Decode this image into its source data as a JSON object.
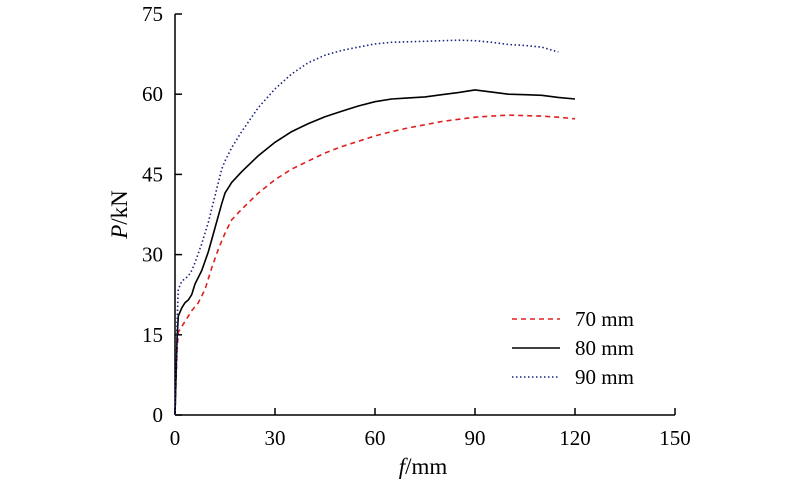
{
  "chart_data": {
    "type": "line",
    "xlabel": {
      "var": "f",
      "unit": "/mm"
    },
    "ylabel": {
      "var": "P",
      "unit": "/kN"
    },
    "xlim": [
      0,
      150
    ],
    "ylim": [
      0,
      75
    ],
    "xticks": [
      "0",
      "30",
      "60",
      "90",
      "120",
      "150"
    ],
    "yticks": [
      "0",
      "15",
      "30",
      "45",
      "60",
      "75"
    ],
    "grid": false,
    "legend_position": "bottom-right",
    "series": [
      {
        "name": "70 mm",
        "color": "#e02020",
        "style": "dashed",
        "points": [
          [
            0,
            0
          ],
          [
            0.3,
            6
          ],
          [
            0.6,
            12
          ],
          [
            1,
            15.5
          ],
          [
            3,
            17.5
          ],
          [
            5,
            19.5
          ],
          [
            7,
            21
          ],
          [
            9,
            23.5
          ],
          [
            11,
            27.5
          ],
          [
            13,
            31
          ],
          [
            15,
            34
          ],
          [
            17,
            36.5
          ],
          [
            20,
            38.5
          ],
          [
            25,
            41.5
          ],
          [
            30,
            44
          ],
          [
            35,
            46
          ],
          [
            40,
            47.5
          ],
          [
            45,
            49
          ],
          [
            50,
            50.2
          ],
          [
            55,
            51.2
          ],
          [
            60,
            52.2
          ],
          [
            65,
            53
          ],
          [
            70,
            53.7
          ],
          [
            75,
            54.3
          ],
          [
            80,
            54.9
          ],
          [
            85,
            55.3
          ],
          [
            90,
            55.7
          ],
          [
            95,
            55.9
          ],
          [
            100,
            56.1
          ],
          [
            105,
            56
          ],
          [
            110,
            55.9
          ],
          [
            115,
            55.7
          ],
          [
            120,
            55.4
          ]
        ]
      },
      {
        "name": "80 mm",
        "color": "#000000",
        "style": "solid",
        "points": [
          [
            0,
            0
          ],
          [
            0.3,
            7
          ],
          [
            0.6,
            14
          ],
          [
            1,
            18.5
          ],
          [
            2,
            20
          ],
          [
            3,
            21
          ],
          [
            4,
            21.5
          ],
          [
            5,
            22.5
          ],
          [
            6,
            24.5
          ],
          [
            8,
            27
          ],
          [
            10,
            30.5
          ],
          [
            12,
            35
          ],
          [
            14,
            39.5
          ],
          [
            15,
            41.5
          ],
          [
            17,
            43.5
          ],
          [
            20,
            45.5
          ],
          [
            25,
            48.5
          ],
          [
            30,
            51
          ],
          [
            35,
            53
          ],
          [
            40,
            54.5
          ],
          [
            45,
            55.8
          ],
          [
            50,
            56.8
          ],
          [
            55,
            57.8
          ],
          [
            60,
            58.6
          ],
          [
            65,
            59.1
          ],
          [
            70,
            59.3
          ],
          [
            75,
            59.5
          ],
          [
            80,
            59.9
          ],
          [
            85,
            60.3
          ],
          [
            90,
            60.8
          ],
          [
            95,
            60.4
          ],
          [
            100,
            60
          ],
          [
            105,
            59.9
          ],
          [
            110,
            59.8
          ],
          [
            115,
            59.4
          ],
          [
            120,
            59.1
          ]
        ]
      },
      {
        "name": "90 mm",
        "color": "#1a237e",
        "style": "dotted",
        "points": [
          [
            0,
            0
          ],
          [
            0.3,
            9
          ],
          [
            0.6,
            17
          ],
          [
            1,
            23.5
          ],
          [
            2,
            25
          ],
          [
            3,
            25.5
          ],
          [
            4,
            26
          ],
          [
            5,
            27
          ],
          [
            6,
            28.5
          ],
          [
            8,
            32
          ],
          [
            10,
            36
          ],
          [
            12,
            41
          ],
          [
            14,
            46
          ],
          [
            15,
            47.5
          ],
          [
            17,
            50
          ],
          [
            20,
            53
          ],
          [
            25,
            57.5
          ],
          [
            30,
            61
          ],
          [
            35,
            63.8
          ],
          [
            40,
            65.9
          ],
          [
            45,
            67.3
          ],
          [
            50,
            68.2
          ],
          [
            55,
            68.8
          ],
          [
            60,
            69.4
          ],
          [
            65,
            69.7
          ],
          [
            70,
            69.8
          ],
          [
            75,
            69.9
          ],
          [
            80,
            70
          ],
          [
            85,
            70.1
          ],
          [
            90,
            70
          ],
          [
            95,
            69.7
          ],
          [
            100,
            69.3
          ],
          [
            105,
            69.1
          ],
          [
            110,
            68.8
          ],
          [
            115,
            67.9
          ]
        ]
      }
    ]
  }
}
